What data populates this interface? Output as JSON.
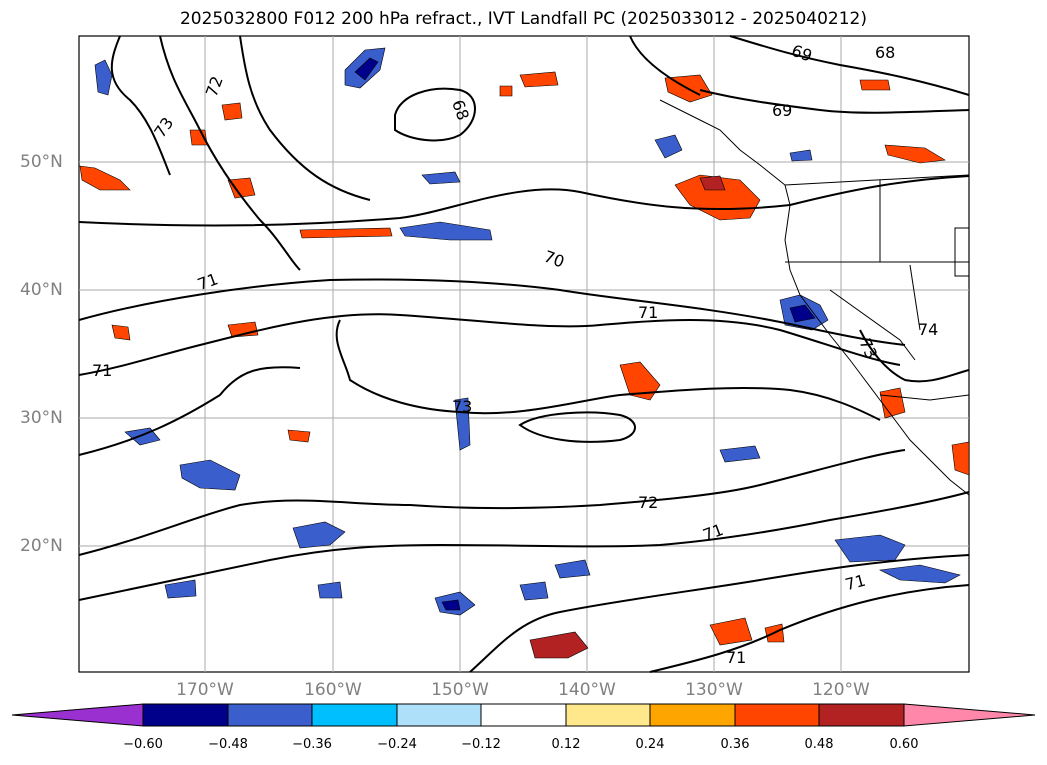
{
  "title": "2025032800 F012 200 hPa refract., IVT Landfall PC (2025033012 - 2025040212)",
  "axes": {
    "lat_labels": [
      "50°N",
      "40°N",
      "30°N",
      "20°N"
    ],
    "lon_labels": [
      "170°W",
      "160°W",
      "150°W",
      "140°W",
      "130°W",
      "120°W"
    ]
  },
  "contour_labels": [
    "69",
    "68",
    "69",
    "72",
    "73",
    "68",
    "70",
    "71",
    "71",
    "71",
    "73",
    "74",
    "73",
    "72",
    "71",
    "71",
    "71"
  ],
  "colorbar": {
    "ticks": [
      "−0.60",
      "−0.48",
      "−0.36",
      "−0.24",
      "−0.12",
      "0.12",
      "0.24",
      "0.36",
      "0.48",
      "0.60"
    ],
    "colors": {
      "under": "#9b30d0",
      "c1": "#00008b",
      "c2": "#3a5fcd",
      "c3": "#00bfff",
      "c4": "#aee0fa",
      "c5": "#ffffff",
      "c6": "#ffe88c",
      "c7": "#ffa500",
      "c8": "#ff4500",
      "c9": "#b22222",
      "over": "#ff88aa"
    }
  }
}
